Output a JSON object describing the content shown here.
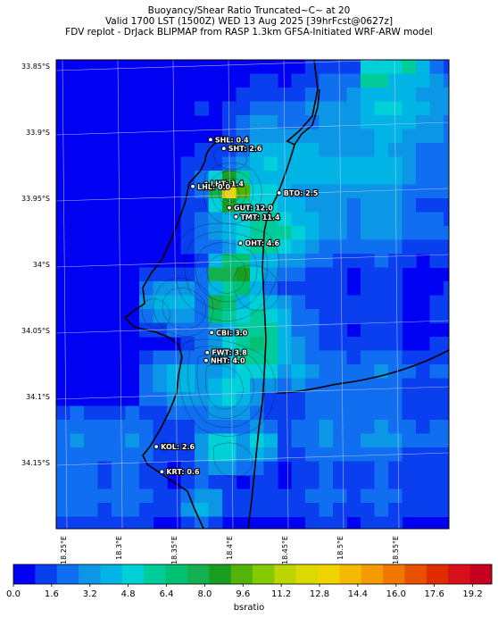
{
  "title": {
    "line1": "Buoyancy/Shear Ratio Truncated~C~    at 20",
    "line2": "Valid 1700 LST (1500Z) WED 13 Aug 2025 [39hrFcst@0627z]",
    "line3": "FDV replot - DrJack BLIPMAP from RASP 1.3km GFSA-Initiated WRF-ARW model"
  },
  "lat_labels": [
    "33.85°S",
    "33.9°S",
    "33.95°S",
    "34°S",
    "34.05°S",
    "34.1°S",
    "34.15°S"
  ],
  "lon_labels": [
    "18.25°E",
    "18.3°E",
    "18.35°E",
    "18.4°E",
    "18.45°E",
    "18.5°E",
    "18.55°E"
  ],
  "stations": [
    {
      "code": "SHL",
      "value": "0.4",
      "text": "SHL: 0.4",
      "lat": -33.906,
      "lon": 18.383
    },
    {
      "code": "SHT",
      "value": "2.6",
      "text": "SHT: 2.6",
      "lat": -33.913,
      "lon": 18.395
    },
    {
      "code": "LHT",
      "value": "1.4",
      "text": "LHT: 1.4",
      "lat": -33.939,
      "lon": 18.379
    },
    {
      "code": "LHL",
      "value": "0.0",
      "text": "LHL: 0.0",
      "lat": -33.941,
      "lon": 18.367
    },
    {
      "code": "BTO",
      "value": "2.5",
      "text": "BTO: 2.5",
      "lat": -33.948,
      "lon": 18.445
    },
    {
      "code": "GUT",
      "value": "12.0",
      "text": "GUT: 12.0",
      "lat": -33.958,
      "lon": 18.4
    },
    {
      "code": "TMT",
      "value": "11.4",
      "text": "TMT: 11.4",
      "lat": -33.965,
      "lon": 18.406
    },
    {
      "code": "OHT",
      "value": "4.6",
      "text": "OHT: 4.6",
      "lat": -33.985,
      "lon": 18.41
    },
    {
      "code": "CBI",
      "value": "3.0",
      "text": "CBI: 3.0",
      "lat": -34.052,
      "lon": 18.384
    },
    {
      "code": "FWT",
      "value": "3.8",
      "text": "FWT: 3.8",
      "lat": -34.067,
      "lon": 18.38
    },
    {
      "code": "NHT",
      "value": "4.0",
      "text": "NHT: 4.0",
      "lat": -34.073,
      "lon": 18.379
    },
    {
      "code": "KOL",
      "value": "2.6",
      "text": "KOL: 2.6",
      "lat": -34.137,
      "lon": 18.334
    },
    {
      "code": "KRT",
      "value": "0.6",
      "text": "KRT: 0.6",
      "lat": -34.156,
      "lon": 18.339
    }
  ],
  "colorbar": {
    "label": "bsratio",
    "min": 0,
    "max": 20,
    "tick_labels": [
      "0.0",
      "1.6",
      "3.2",
      "4.8",
      "6.4",
      "8.0",
      "9.6",
      "11.2",
      "12.8",
      "14.4",
      "16.0",
      "17.6",
      "19.2"
    ],
    "colors": [
      "#0000f2",
      "#0a3fef",
      "#0f6ff0",
      "#0b97e6",
      "#00b4e6",
      "#00d1d8",
      "#00cc9a",
      "#00c073",
      "#12b04e",
      "#1a9e22",
      "#52b308",
      "#85c900",
      "#bcd400",
      "#dcd800",
      "#f0d400",
      "#f5ba00",
      "#f59a00",
      "#f07800",
      "#e85000",
      "#e02c00",
      "#d8101c",
      "#c80020"
    ]
  },
  "map_colors": {
    "background": "#0000f2",
    "coast": "#000000",
    "grid": "#c8c8ff",
    "station_label": "#ffffff"
  }
}
